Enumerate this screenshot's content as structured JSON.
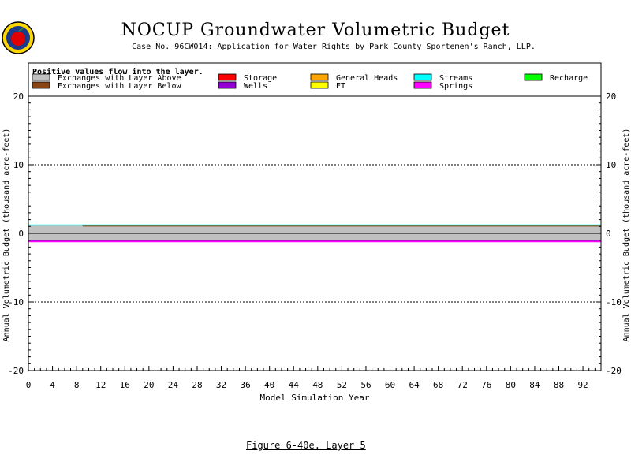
{
  "page": {
    "title": "NOCUP Groundwater Volumetric Budget",
    "subtitle": "Case No. 96CW014: Application for Water Rights by Park County Sportemen's Ranch, LLP.",
    "caption": "Figure 6-40e.   Layer 5"
  },
  "legend": {
    "note": "Positive values flow into the layer.",
    "items": [
      {
        "label": "Exchanges with Layer Above",
        "color": "#c0c0c0"
      },
      {
        "label": "Exchanges with Layer Below",
        "color": "#8b4513"
      },
      {
        "label": "Storage",
        "color": "#ff0000"
      },
      {
        "label": "Wells",
        "color": "#9400d3"
      },
      {
        "label": "General Heads",
        "color": "#ffa500"
      },
      {
        "label": "ET",
        "color": "#ffff00"
      },
      {
        "label": "Streams",
        "color": "#00ffff"
      },
      {
        "label": "Springs",
        "color": "#ff00ff"
      },
      {
        "label": "Recharge",
        "color": "#00ff00"
      }
    ]
  },
  "chart_data": {
    "type": "area",
    "xlabel": "Model Simulation Year",
    "ylabel": "Annual Volumetric Budget (thousand acre-feet)",
    "xlim": [
      0,
      95
    ],
    "ylim": [
      -20,
      20
    ],
    "x_ticks": [
      0,
      4,
      8,
      12,
      16,
      20,
      24,
      28,
      32,
      36,
      40,
      44,
      48,
      52,
      56,
      60,
      64,
      68,
      72,
      76,
      80,
      84,
      88,
      92
    ],
    "y_ticks": [
      20,
      10,
      0,
      -10,
      -20
    ],
    "y_tick_labels": [
      "20",
      "10",
      "0",
      "-10",
      "-20"
    ],
    "reference_lines": [
      10,
      -10
    ],
    "series": [
      {
        "name": "Exchanges with Layer Above",
        "color": "#c0c0c0",
        "start": 0,
        "values": [
          0
        ]
      },
      {
        "name": "Exchanges with Layer Below",
        "color": "#8b4513",
        "start": 9,
        "values": [
          1.0
        ]
      },
      {
        "name": "Streams",
        "color": "#00ffff",
        "start": 0,
        "values": [
          1.2
        ]
      },
      {
        "name": "Wells",
        "color": "#9400d3",
        "start": 0,
        "values": [
          -0.6
        ]
      },
      {
        "name": "Springs",
        "color": "#ff00ff",
        "start": 0,
        "values": [
          -0.6
        ]
      }
    ],
    "positive_total_approx": 1.2,
    "negative_total_approx": -1.2
  },
  "colors": {
    "zero_band": "#c0c0c0",
    "streams": "#00ffff",
    "layer_below": "#8b4513",
    "wells": "#9400d3",
    "springs": "#ff00ff"
  }
}
